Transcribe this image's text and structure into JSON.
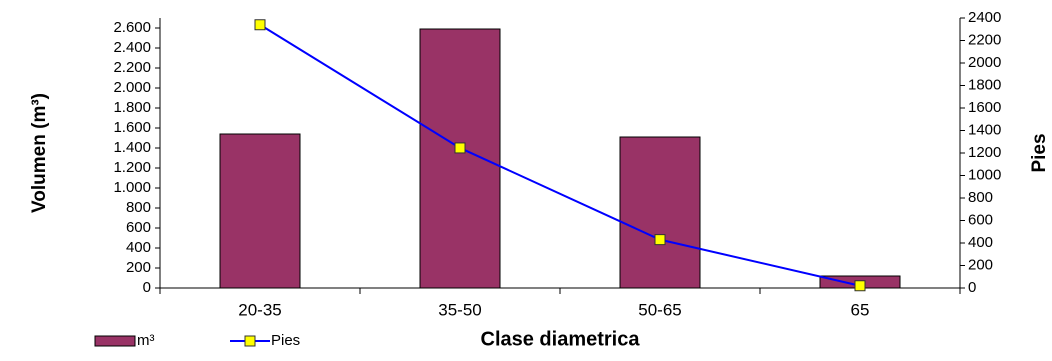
{
  "chart_data": {
    "type": "bar-line",
    "x_label": "Clase diametrica",
    "y_label": "Volumen (m³)",
    "y2_label": "Pies",
    "categories": [
      "20-35",
      "35-50",
      "50-65",
      "65"
    ],
    "series": [
      {
        "name": "m³",
        "type": "bar",
        "color": "#993366",
        "values": [
          1540,
          2590,
          1510,
          120
        ]
      },
      {
        "name": "Pies",
        "type": "line",
        "axis": "y2",
        "color": "#0000ff",
        "marker_color": "#ffff00",
        "values": [
          2340,
          1245,
          430,
          20
        ]
      }
    ],
    "ylim": [
      0,
      2700
    ],
    "yticks": [
      0,
      200,
      400,
      600,
      800,
      {
        "value": 1000,
        "label": "1.000"
      },
      {
        "value": 1200,
        "label": "1.200"
      },
      {
        "value": 1400,
        "label": "1.400"
      },
      {
        "value": 1600,
        "label": "1.600"
      },
      {
        "value": 1800,
        "label": "1.800"
      },
      {
        "value": 2000,
        "label": "2.000"
      },
      {
        "value": 2200,
        "label": "2.200"
      },
      {
        "value": 2400,
        "label": "2.400"
      },
      {
        "value": 2600,
        "label": "2.600"
      }
    ],
    "y2lim": [
      0,
      2400
    ],
    "y2ticks": [
      0,
      200,
      400,
      600,
      800,
      1000,
      1200,
      1400,
      1600,
      1800,
      2000,
      2200,
      2400
    ],
    "legend": "bottom-left"
  }
}
